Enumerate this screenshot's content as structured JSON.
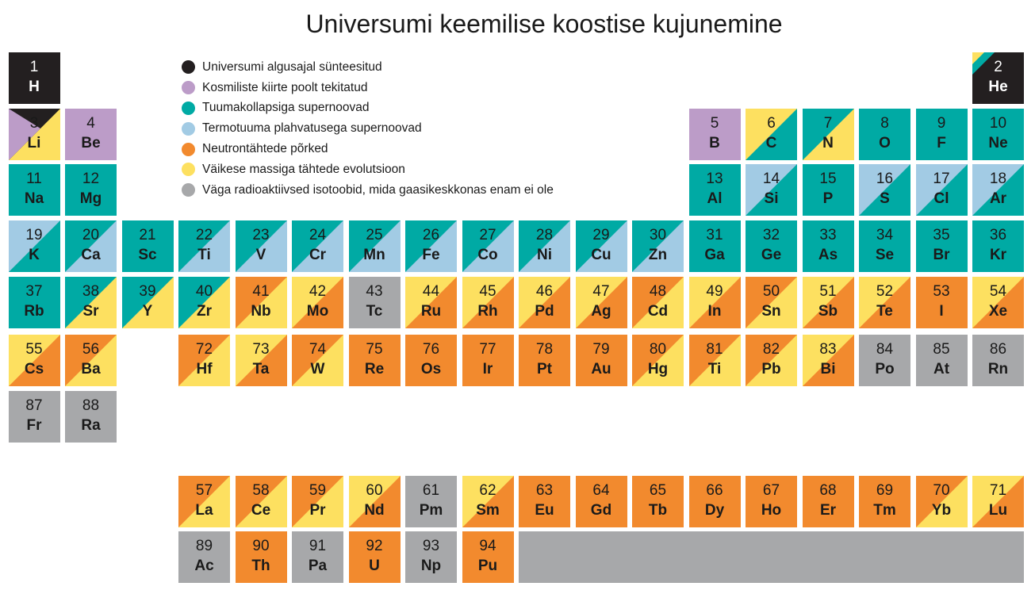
{
  "title": "Universumi keemilise koostise kujunemine",
  "colors": {
    "K": "#231f20",
    "P": "#bc9cc8",
    "T": "#00aaa4",
    "L": "#a2cbe4",
    "O": "#f28a2e",
    "Y": "#fde060",
    "G": "#a7a8aa"
  },
  "legend": [
    {
      "key": "K",
      "label": "Universumi algusajal sünteesitud"
    },
    {
      "key": "P",
      "label": "Kosmiliste kiirte poolt tekitatud"
    },
    {
      "key": "T",
      "label": "Tuumakollapsiga supernoovad"
    },
    {
      "key": "L",
      "label": "Termotuuma plahvatusega supernoovad"
    },
    {
      "key": "O",
      "label": "Neutrontähtede põrked"
    },
    {
      "key": "Y",
      "label": "Väikese massiga tähtede evolutsioon"
    },
    {
      "key": "G",
      "label": "Väga radioaktiivsed isotoobid, mida gaasikeskkonas enam ei ole"
    }
  ],
  "elements": [
    {
      "n": "1",
      "s": "H",
      "fill": [
        "K"
      ]
    },
    {
      "n": "2",
      "s": "He",
      "fill": [
        "K",
        "T",
        "Y"
      ]
    },
    {
      "n": "3",
      "s": "Li",
      "fill": [
        "Y",
        "K",
        "P"
      ]
    },
    {
      "n": "4",
      "s": "Be",
      "fill": [
        "P"
      ]
    },
    {
      "n": "5",
      "s": "B",
      "fill": [
        "P"
      ]
    },
    {
      "n": "6",
      "s": "C",
      "fill": [
        "T",
        "Y"
      ]
    },
    {
      "n": "7",
      "s": "N",
      "fill": [
        "Y",
        "T"
      ]
    },
    {
      "n": "8",
      "s": "O",
      "fill": [
        "T"
      ]
    },
    {
      "n": "9",
      "s": "F",
      "fill": [
        "T"
      ]
    },
    {
      "n": "10",
      "s": "Ne",
      "fill": [
        "T"
      ]
    },
    {
      "n": "11",
      "s": "Na",
      "fill": [
        "T"
      ]
    },
    {
      "n": "12",
      "s": "Mg",
      "fill": [
        "T"
      ]
    },
    {
      "n": "13",
      "s": "Al",
      "fill": [
        "T"
      ]
    },
    {
      "n": "14",
      "s": "Si",
      "fill": [
        "T",
        "L"
      ]
    },
    {
      "n": "15",
      "s": "P",
      "fill": [
        "T"
      ]
    },
    {
      "n": "16",
      "s": "S",
      "fill": [
        "T",
        "L"
      ]
    },
    {
      "n": "17",
      "s": "Cl",
      "fill": [
        "T",
        "L"
      ]
    },
    {
      "n": "18",
      "s": "Ar",
      "fill": [
        "T",
        "L"
      ]
    },
    {
      "n": "19",
      "s": "K",
      "fill": [
        "T",
        "L"
      ]
    },
    {
      "n": "20",
      "s": "Ca",
      "fill": [
        "L",
        "T"
      ]
    },
    {
      "n": "21",
      "s": "Sc",
      "fill": [
        "T"
      ]
    },
    {
      "n": "22",
      "s": "Ti",
      "fill": [
        "L",
        "T"
      ]
    },
    {
      "n": "23",
      "s": "V",
      "fill": [
        "L",
        "T"
      ]
    },
    {
      "n": "24",
      "s": "Cr",
      "fill": [
        "L",
        "T"
      ]
    },
    {
      "n": "25",
      "s": "Mn",
      "fill": [
        "L",
        "T"
      ]
    },
    {
      "n": "26",
      "s": "Fe",
      "fill": [
        "L",
        "T"
      ]
    },
    {
      "n": "27",
      "s": "Co",
      "fill": [
        "L",
        "T"
      ]
    },
    {
      "n": "28",
      "s": "Ni",
      "fill": [
        "L",
        "T"
      ]
    },
    {
      "n": "29",
      "s": "Cu",
      "fill": [
        "L",
        "T"
      ]
    },
    {
      "n": "30",
      "s": "Zn",
      "fill": [
        "L",
        "T"
      ]
    },
    {
      "n": "31",
      "s": "Ga",
      "fill": [
        "T"
      ]
    },
    {
      "n": "32",
      "s": "Ge",
      "fill": [
        "T"
      ]
    },
    {
      "n": "33",
      "s": "As",
      "fill": [
        "T"
      ]
    },
    {
      "n": "34",
      "s": "Se",
      "fill": [
        "T"
      ]
    },
    {
      "n": "35",
      "s": "Br",
      "fill": [
        "T"
      ]
    },
    {
      "n": "36",
      "s": "Kr",
      "fill": [
        "T"
      ]
    },
    {
      "n": "37",
      "s": "Rb",
      "fill": [
        "T"
      ]
    },
    {
      "n": "38",
      "s": "Sr",
      "fill": [
        "Y",
        "T"
      ]
    },
    {
      "n": "39",
      "s": "Y",
      "fill": [
        "Y",
        "T"
      ]
    },
    {
      "n": "40",
      "s": "Zr",
      "fill": [
        "Y",
        "T"
      ]
    },
    {
      "n": "41",
      "s": "Nb",
      "fill": [
        "Y",
        "O"
      ]
    },
    {
      "n": "42",
      "s": "Mo",
      "fill": [
        "O",
        "Y"
      ]
    },
    {
      "n": "43",
      "s": "Tc",
      "fill": [
        "G"
      ]
    },
    {
      "n": "44",
      "s": "Ru",
      "fill": [
        "O",
        "Y"
      ]
    },
    {
      "n": "45",
      "s": "Rh",
      "fill": [
        "O",
        "Y"
      ]
    },
    {
      "n": "46",
      "s": "Pd",
      "fill": [
        "O",
        "Y"
      ]
    },
    {
      "n": "47",
      "s": "Ag",
      "fill": [
        "O",
        "Y"
      ]
    },
    {
      "n": "48",
      "s": "Cd",
      "fill": [
        "Y",
        "O"
      ]
    },
    {
      "n": "49",
      "s": "In",
      "fill": [
        "O",
        "Y"
      ]
    },
    {
      "n": "50",
      "s": "Sn",
      "fill": [
        "Y",
        "O"
      ]
    },
    {
      "n": "51",
      "s": "Sb",
      "fill": [
        "O",
        "Y"
      ]
    },
    {
      "n": "52",
      "s": "Te",
      "fill": [
        "O",
        "Y"
      ]
    },
    {
      "n": "53",
      "s": "I",
      "fill": [
        "O"
      ]
    },
    {
      "n": "54",
      "s": "Xe",
      "fill": [
        "O",
        "Y"
      ]
    },
    {
      "n": "55",
      "s": "Cs",
      "fill": [
        "O",
        "Y"
      ]
    },
    {
      "n": "56",
      "s": "Ba",
      "fill": [
        "Y",
        "O"
      ]
    },
    {
      "n": "72",
      "s": "Hf",
      "fill": [
        "Y",
        "O"
      ]
    },
    {
      "n": "73",
      "s": "Ta",
      "fill": [
        "O",
        "Y"
      ]
    },
    {
      "n": "74",
      "s": "W",
      "fill": [
        "Y",
        "O"
      ]
    },
    {
      "n": "75",
      "s": "Re",
      "fill": [
        "O"
      ]
    },
    {
      "n": "76",
      "s": "Os",
      "fill": [
        "O"
      ]
    },
    {
      "n": "77",
      "s": "Ir",
      "fill": [
        "O"
      ]
    },
    {
      "n": "78",
      "s": "Pt",
      "fill": [
        "O"
      ]
    },
    {
      "n": "79",
      "s": "Au",
      "fill": [
        "O"
      ]
    },
    {
      "n": "80",
      "s": "Hg",
      "fill": [
        "Y",
        "O"
      ]
    },
    {
      "n": "81",
      "s": "Ti",
      "fill": [
        "Y",
        "O"
      ]
    },
    {
      "n": "82",
      "s": "Pb",
      "fill": [
        "Y",
        "O"
      ]
    },
    {
      "n": "83",
      "s": "Bi",
      "fill": [
        "O",
        "Y"
      ]
    },
    {
      "n": "84",
      "s": "Po",
      "fill": [
        "G"
      ]
    },
    {
      "n": "85",
      "s": "At",
      "fill": [
        "G"
      ]
    },
    {
      "n": "86",
      "s": "Rn",
      "fill": [
        "G"
      ]
    },
    {
      "n": "87",
      "s": "Fr",
      "fill": [
        "G"
      ]
    },
    {
      "n": "88",
      "s": "Ra",
      "fill": [
        "G"
      ]
    },
    {
      "n": "57",
      "s": "La",
      "fill": [
        "Y",
        "O"
      ]
    },
    {
      "n": "58",
      "s": "Ce",
      "fill": [
        "Y",
        "O"
      ]
    },
    {
      "n": "59",
      "s": "Pr",
      "fill": [
        "Y",
        "O"
      ]
    },
    {
      "n": "60",
      "s": "Nd",
      "fill": [
        "O",
        "Y"
      ]
    },
    {
      "n": "61",
      "s": "Pm",
      "fill": [
        "G"
      ]
    },
    {
      "n": "62",
      "s": "Sm",
      "fill": [
        "O",
        "Y"
      ]
    },
    {
      "n": "63",
      "s": "Eu",
      "fill": [
        "O"
      ]
    },
    {
      "n": "64",
      "s": "Gd",
      "fill": [
        "O"
      ]
    },
    {
      "n": "65",
      "s": "Tb",
      "fill": [
        "O"
      ]
    },
    {
      "n": "66",
      "s": "Dy",
      "fill": [
        "O"
      ]
    },
    {
      "n": "67",
      "s": "Ho",
      "fill": [
        "O"
      ]
    },
    {
      "n": "68",
      "s": "Er",
      "fill": [
        "O"
      ]
    },
    {
      "n": "69",
      "s": "Tm",
      "fill": [
        "O"
      ]
    },
    {
      "n": "70",
      "s": "Yb",
      "fill": [
        "Y",
        "O"
      ]
    },
    {
      "n": "71",
      "s": "Lu",
      "fill": [
        "O",
        "Y"
      ]
    },
    {
      "n": "89",
      "s": "Ac",
      "fill": [
        "G"
      ]
    },
    {
      "n": "90",
      "s": "Th",
      "fill": [
        "O"
      ]
    },
    {
      "n": "91",
      "s": "Pa",
      "fill": [
        "G"
      ]
    },
    {
      "n": "92",
      "s": "U",
      "fill": [
        "O"
      ]
    },
    {
      "n": "93",
      "s": "Np",
      "fill": [
        "G"
      ]
    },
    {
      "n": "94",
      "s": "Pu",
      "fill": [
        "O"
      ]
    }
  ]
}
